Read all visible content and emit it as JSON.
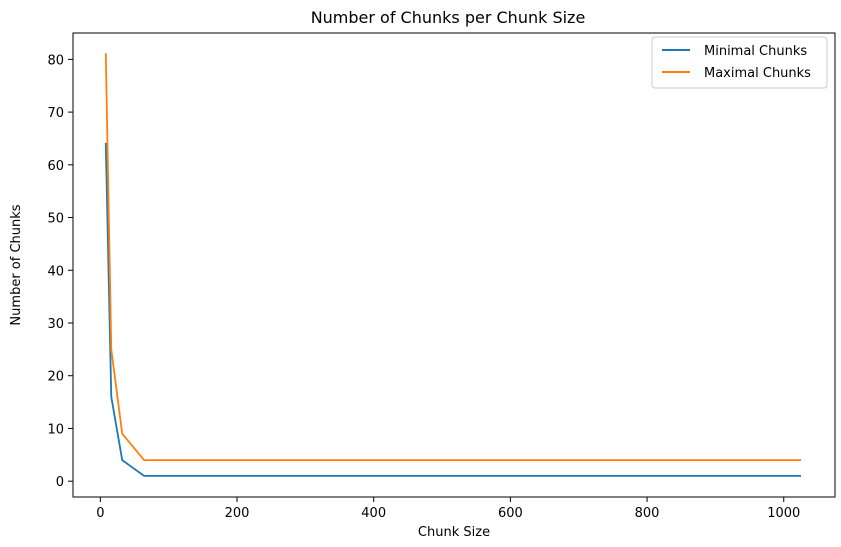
{
  "chart_data": {
    "type": "line",
    "title": "Number of Chunks per Chunk Size",
    "xlabel": "Chunk Size",
    "ylabel": "Number of Chunks",
    "xlim": [
      -40,
      1075
    ],
    "ylim": [
      -3,
      85
    ],
    "xticks": [
      0,
      200,
      400,
      600,
      800,
      1000
    ],
    "yticks": [
      0,
      10,
      20,
      30,
      40,
      50,
      60,
      70,
      80
    ],
    "grid": false,
    "legend_position": "top-right",
    "x": [
      8,
      16,
      32,
      64,
      128,
      256,
      512,
      1024
    ],
    "series": [
      {
        "name": "Minimal Chunks",
        "color": "#1f77b4",
        "values": [
          64,
          16,
          4,
          1,
          1,
          1,
          1,
          1
        ]
      },
      {
        "name": "Maximal Chunks",
        "color": "#ff7f0e",
        "values": [
          81,
          25,
          9,
          4,
          4,
          4,
          4,
          4
        ]
      }
    ]
  }
}
